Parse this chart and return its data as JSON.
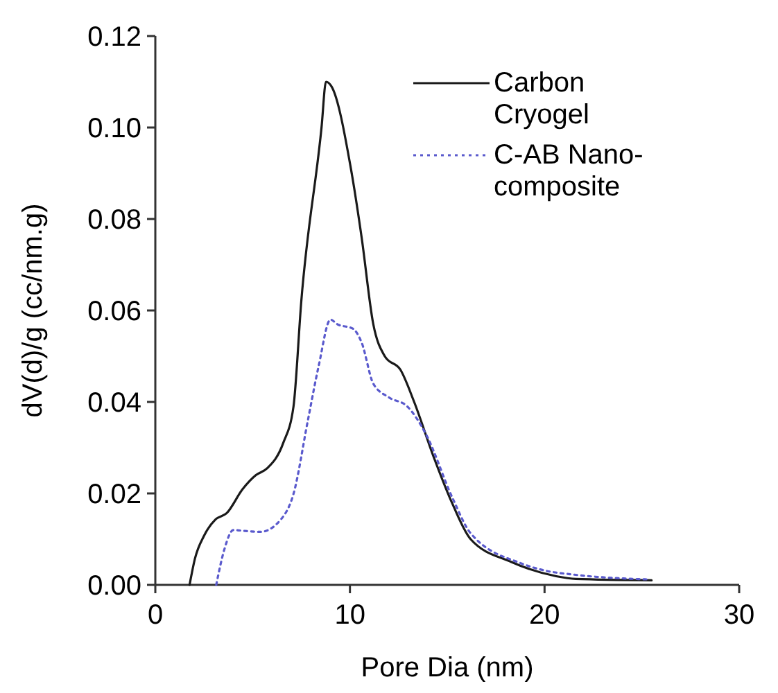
{
  "chart_data": {
    "type": "line",
    "xlabel": "Pore Dia (nm)",
    "ylabel": "dV(d)/g (cc/nm.g)",
    "xlim": [
      0,
      30
    ],
    "xticks": [
      0,
      10,
      20,
      30
    ],
    "ylim": [
      0,
      0.12
    ],
    "yticks": [
      {
        "value": 0,
        "label": "0.00"
      },
      {
        "value": 0.02,
        "label": "0.02"
      },
      {
        "value": 0.04,
        "label": "0.04"
      },
      {
        "value": 0.06,
        "label": "0.06"
      },
      {
        "value": 0.08,
        "label": "0.08"
      },
      {
        "value": 0.1,
        "label": "0.10"
      },
      {
        "value": 0.12,
        "label": "0.12"
      }
    ],
    "grid": false,
    "legend": "top right",
    "marker": "none",
    "series": [
      {
        "name": "Carbon Cryogel",
        "color": "#1a1a1a",
        "line_style": "solid",
        "x": [
          1.76,
          2.04,
          2.51,
          3.09,
          3.67,
          4.48,
          5.17,
          5.75,
          6.57,
          7.1,
          7.5,
          8.54,
          8.77,
          9.05,
          10.05,
          10.6,
          11.2,
          11.79,
          12.6,
          13.3,
          14.3,
          15.27,
          16.2,
          18.3,
          20.6,
          21.6,
          25.5
        ],
        "values": [
          0,
          0.0058,
          0.0108,
          0.0143,
          0.0157,
          0.0209,
          0.024,
          0.0255,
          0.031,
          0.039,
          0.062,
          0.1,
          0.11,
          0.109,
          0.091,
          0.076,
          0.057,
          0.05,
          0.047,
          0.04,
          0.028,
          0.0177,
          0.01,
          0.005,
          0.0019,
          0.0013,
          0.001
        ]
      },
      {
        "name": "C-AB Nano-composite",
        "color": "#5a5acd",
        "line_style": "dotted",
        "x": [
          3.13,
          3.55,
          4.01,
          4.6,
          5.4,
          6.45,
          7.1,
          7.84,
          8.4,
          9.0,
          9.35,
          10.16,
          10.6,
          11.2,
          12.0,
          12.95,
          13.9,
          15.27,
          16.2,
          18.8,
          19.95,
          21.6,
          25.3
        ],
        "values": [
          0,
          0.0078,
          0.012,
          0.0118,
          0.0116,
          0.0143,
          0.0199,
          0.036,
          0.048,
          0.058,
          0.057,
          0.056,
          0.053,
          0.044,
          0.041,
          0.039,
          0.033,
          0.019,
          0.0113,
          0.0047,
          0.0032,
          0.0022,
          0.0012
        ]
      }
    ]
  }
}
